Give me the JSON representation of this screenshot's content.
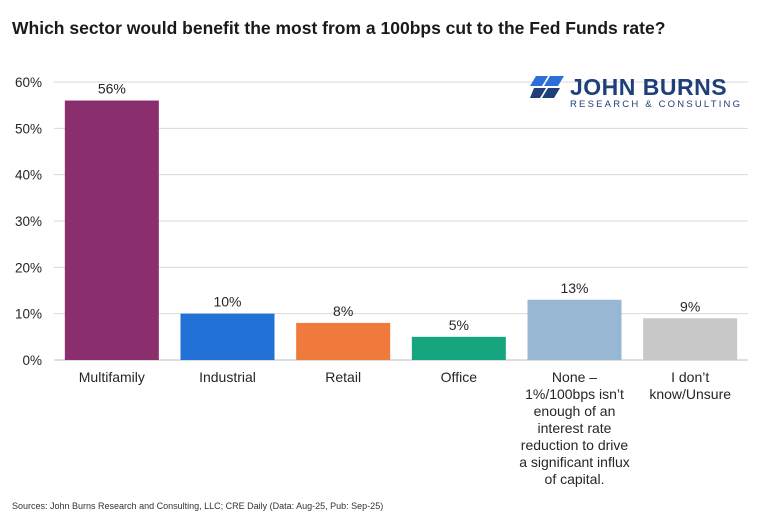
{
  "chart_data": {
    "type": "bar",
    "title": "Which sector would benefit the most from a 100bps cut to the Fed Funds rate?",
    "xlabel": "",
    "ylabel": "",
    "ylim": [
      0,
      60
    ],
    "yticks": [
      "0%",
      "10%",
      "20%",
      "30%",
      "40%",
      "50%",
      "60%"
    ],
    "grid": true,
    "categories": [
      [
        "Multifamily"
      ],
      [
        "Industrial"
      ],
      [
        "Retail"
      ],
      [
        "Office"
      ],
      [
        "None –",
        "1%/100bps isn’t",
        "enough of an",
        "interest rate",
        "reduction to drive",
        "a significant influx",
        "of capital."
      ],
      [
        "I don’t",
        "know/Unsure"
      ]
    ],
    "values": [
      56,
      10,
      8,
      5,
      13,
      9
    ],
    "data_labels": [
      "56%",
      "10%",
      "8%",
      "5%",
      "13%",
      "9%"
    ],
    "colors": [
      "#8a2e6e",
      "#2271d6",
      "#f07a3c",
      "#16a57f",
      "#97b7d3",
      "#c8c8c8"
    ]
  },
  "logo": {
    "name": "JOHN BURNS",
    "subtitle": "RESEARCH & CONSULTING",
    "color": "#1f3f7a",
    "accent": "#2d6fd9"
  },
  "source": "Sources: John Burns Research and Consulting, LLC; CRE Daily (Data: Aug-25, Pub: Sep-25)"
}
